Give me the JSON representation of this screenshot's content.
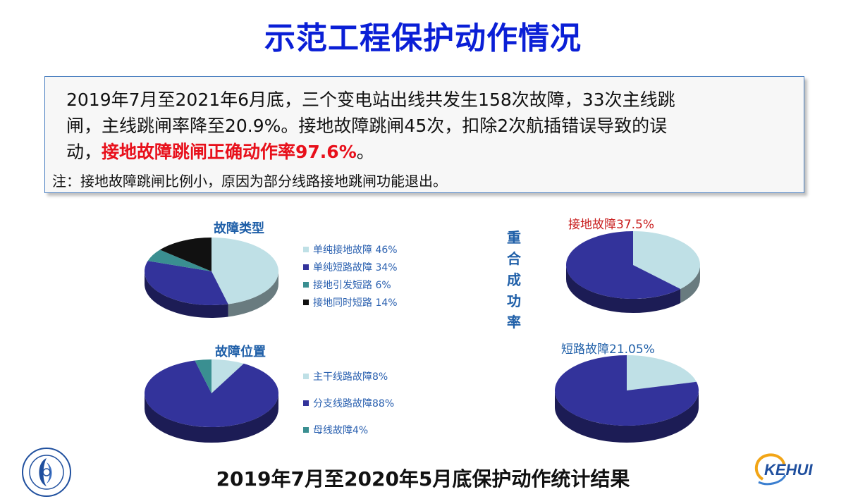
{
  "title": "示范工程保护动作情况",
  "summary": {
    "line1": "2019年7月至2021年6月底，三个变电站出线共发生158次故障，33次主线跳",
    "line2": "闸，主线跳闸率降至20.9%。接地故障跳闸45次，扣除2次航插错误导致的误",
    "line3_prefix": "动，",
    "line3_highlight": "接地故障跳闸正确动作率97.6%",
    "line3_suffix": "。",
    "note": "注：接地故障跳闸比例小，原因为部分线路接地跳闸功能退出。"
  },
  "colors": {
    "title": "#0a1fd6",
    "highlight": "#e8101b",
    "light_blue": "#bfe0e6",
    "navy": "#33339b",
    "teal": "#3a8f91",
    "black": "#111111",
    "chart_label": "#1f5fa8"
  },
  "chart_data": [
    {
      "type": "pie",
      "title": "故障类型",
      "slices": [
        {
          "label": "单纯接地故障 46%",
          "value": 46,
          "color": "#bfe0e6"
        },
        {
          "label": "单纯短路故障 34%",
          "value": 34,
          "color": "#33339b"
        },
        {
          "label": "接地引发短路  6%",
          "value": 6,
          "color": "#3a8f91"
        },
        {
          "label": "接地同时短路 14%",
          "value": 14,
          "color": "#111111"
        }
      ]
    },
    {
      "type": "pie",
      "title": "故障位置",
      "slices": [
        {
          "label": "主干线路故障8%",
          "value": 8,
          "color": "#bfe0e6"
        },
        {
          "label": "分支线路故障88%",
          "value": 88,
          "color": "#33339b"
        },
        {
          "label": "母线故障4%",
          "value": 4,
          "color": "#3a8f91"
        }
      ]
    },
    {
      "type": "pie",
      "title": "接地故障37.5%",
      "slices": [
        {
          "label": "",
          "value": 37.5,
          "color": "#bfe0e6"
        },
        {
          "label": "",
          "value": 62.5,
          "color": "#33339b"
        }
      ]
    },
    {
      "type": "pie",
      "title": "短路故障21.05%",
      "slices": [
        {
          "label": "",
          "value": 21.05,
          "color": "#bfe0e6"
        },
        {
          "label": "",
          "value": 78.95,
          "color": "#33339b"
        }
      ]
    }
  ],
  "vertical_label": [
    "重",
    "合",
    "成",
    "功",
    "率"
  ],
  "footer": "2019年7月至2020年5月底保护动作统计结果",
  "logo_right_text": "KEHUI"
}
